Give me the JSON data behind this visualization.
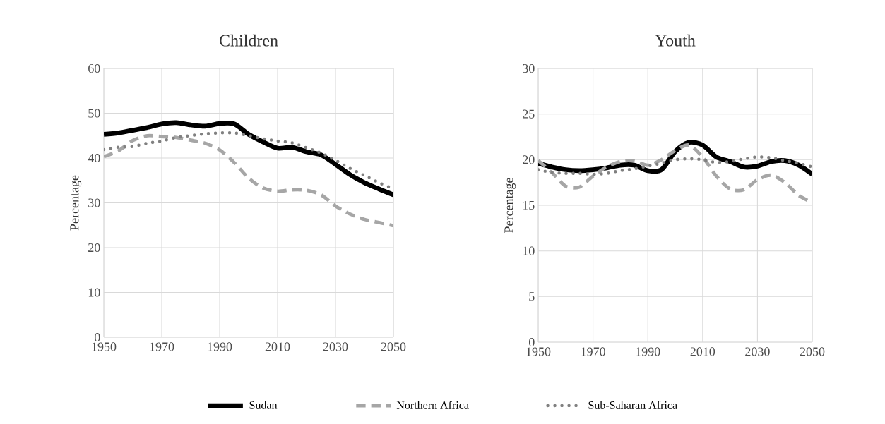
{
  "chart_data": [
    {
      "type": "line",
      "title": "Children",
      "ylabel": "Percentage",
      "x": [
        1950,
        1955,
        1960,
        1965,
        1970,
        1975,
        1980,
        1985,
        1990,
        1995,
        2000,
        2005,
        2010,
        2015,
        2020,
        2025,
        2030,
        2035,
        2040,
        2045,
        2050
      ],
      "xlim": [
        1950,
        2050
      ],
      "xticks": [
        1950,
        1970,
        1990,
        2010,
        2030,
        2050
      ],
      "ylim": [
        0,
        60
      ],
      "yticks": [
        0,
        10,
        20,
        30,
        40,
        50,
        60
      ],
      "grid": true,
      "legend": "bottom",
      "series": [
        {
          "name": "Sudan",
          "color": "#000000",
          "line_style": "solid",
          "values": [
            45.3,
            45.6,
            46.2,
            46.8,
            47.6,
            47.9,
            47.4,
            47.1,
            47.7,
            47.6,
            45.3,
            43.6,
            42.2,
            42.4,
            41.4,
            40.7,
            38.6,
            36.3,
            34.5,
            33.1,
            31.8
          ]
        },
        {
          "name": "Northern Africa",
          "color": "#a6a6a6",
          "line_style": "dashed",
          "values": [
            40.3,
            41.6,
            43.9,
            45.0,
            44.8,
            44.6,
            44.0,
            43.3,
            41.8,
            39.0,
            35.5,
            33.3,
            32.6,
            32.9,
            32.8,
            31.8,
            29.3,
            27.5,
            26.3,
            25.6,
            24.9
          ]
        },
        {
          "name": "Sub-Saharan Africa",
          "color": "#808080",
          "line_style": "dotted",
          "values": [
            41.9,
            42.4,
            42.6,
            43.3,
            43.8,
            44.6,
            45.0,
            45.4,
            45.6,
            45.6,
            45.0,
            44.3,
            43.8,
            43.4,
            42.3,
            41.1,
            39.5,
            37.7,
            36.1,
            34.5,
            33.1
          ]
        }
      ]
    },
    {
      "type": "line",
      "title": "Youth",
      "ylabel": "Percentage",
      "x": [
        1950,
        1955,
        1960,
        1965,
        1970,
        1975,
        1980,
        1985,
        1990,
        1995,
        2000,
        2005,
        2010,
        2015,
        2020,
        2025,
        2030,
        2035,
        2040,
        2045,
        2050
      ],
      "xlim": [
        1950,
        2050
      ],
      "xticks": [
        1950,
        1970,
        1990,
        2010,
        2030,
        2050
      ],
      "ylim": [
        0,
        30
      ],
      "yticks": [
        0,
        5,
        10,
        15,
        20,
        25,
        30
      ],
      "grid": true,
      "series": [
        {
          "color": "#000000",
          "line_style": "solid",
          "values": [
            19.6,
            19.2,
            18.9,
            18.8,
            18.9,
            19.1,
            19.4,
            19.4,
            18.8,
            18.9,
            20.9,
            21.9,
            21.6,
            20.3,
            19.8,
            19.2,
            19.3,
            19.8,
            19.9,
            19.4,
            18.4
          ]
        },
        {
          "color": "#a6a6a6",
          "line_style": "dashed",
          "values": [
            19.9,
            18.6,
            17.1,
            17.0,
            18.2,
            19.2,
            19.8,
            19.9,
            19.4,
            20.0,
            21.0,
            21.6,
            20.3,
            18.2,
            16.8,
            16.7,
            17.8,
            18.3,
            17.5,
            16.1,
            15.3
          ]
        },
        {
          "color": "#808080",
          "line_style": "dotted",
          "values": [
            18.9,
            18.6,
            18.5,
            18.5,
            18.4,
            18.5,
            18.8,
            19.0,
            19.3,
            19.6,
            20.0,
            20.1,
            20.0,
            19.7,
            19.8,
            20.1,
            20.3,
            20.2,
            19.9,
            19.6,
            19.2
          ]
        }
      ]
    }
  ]
}
